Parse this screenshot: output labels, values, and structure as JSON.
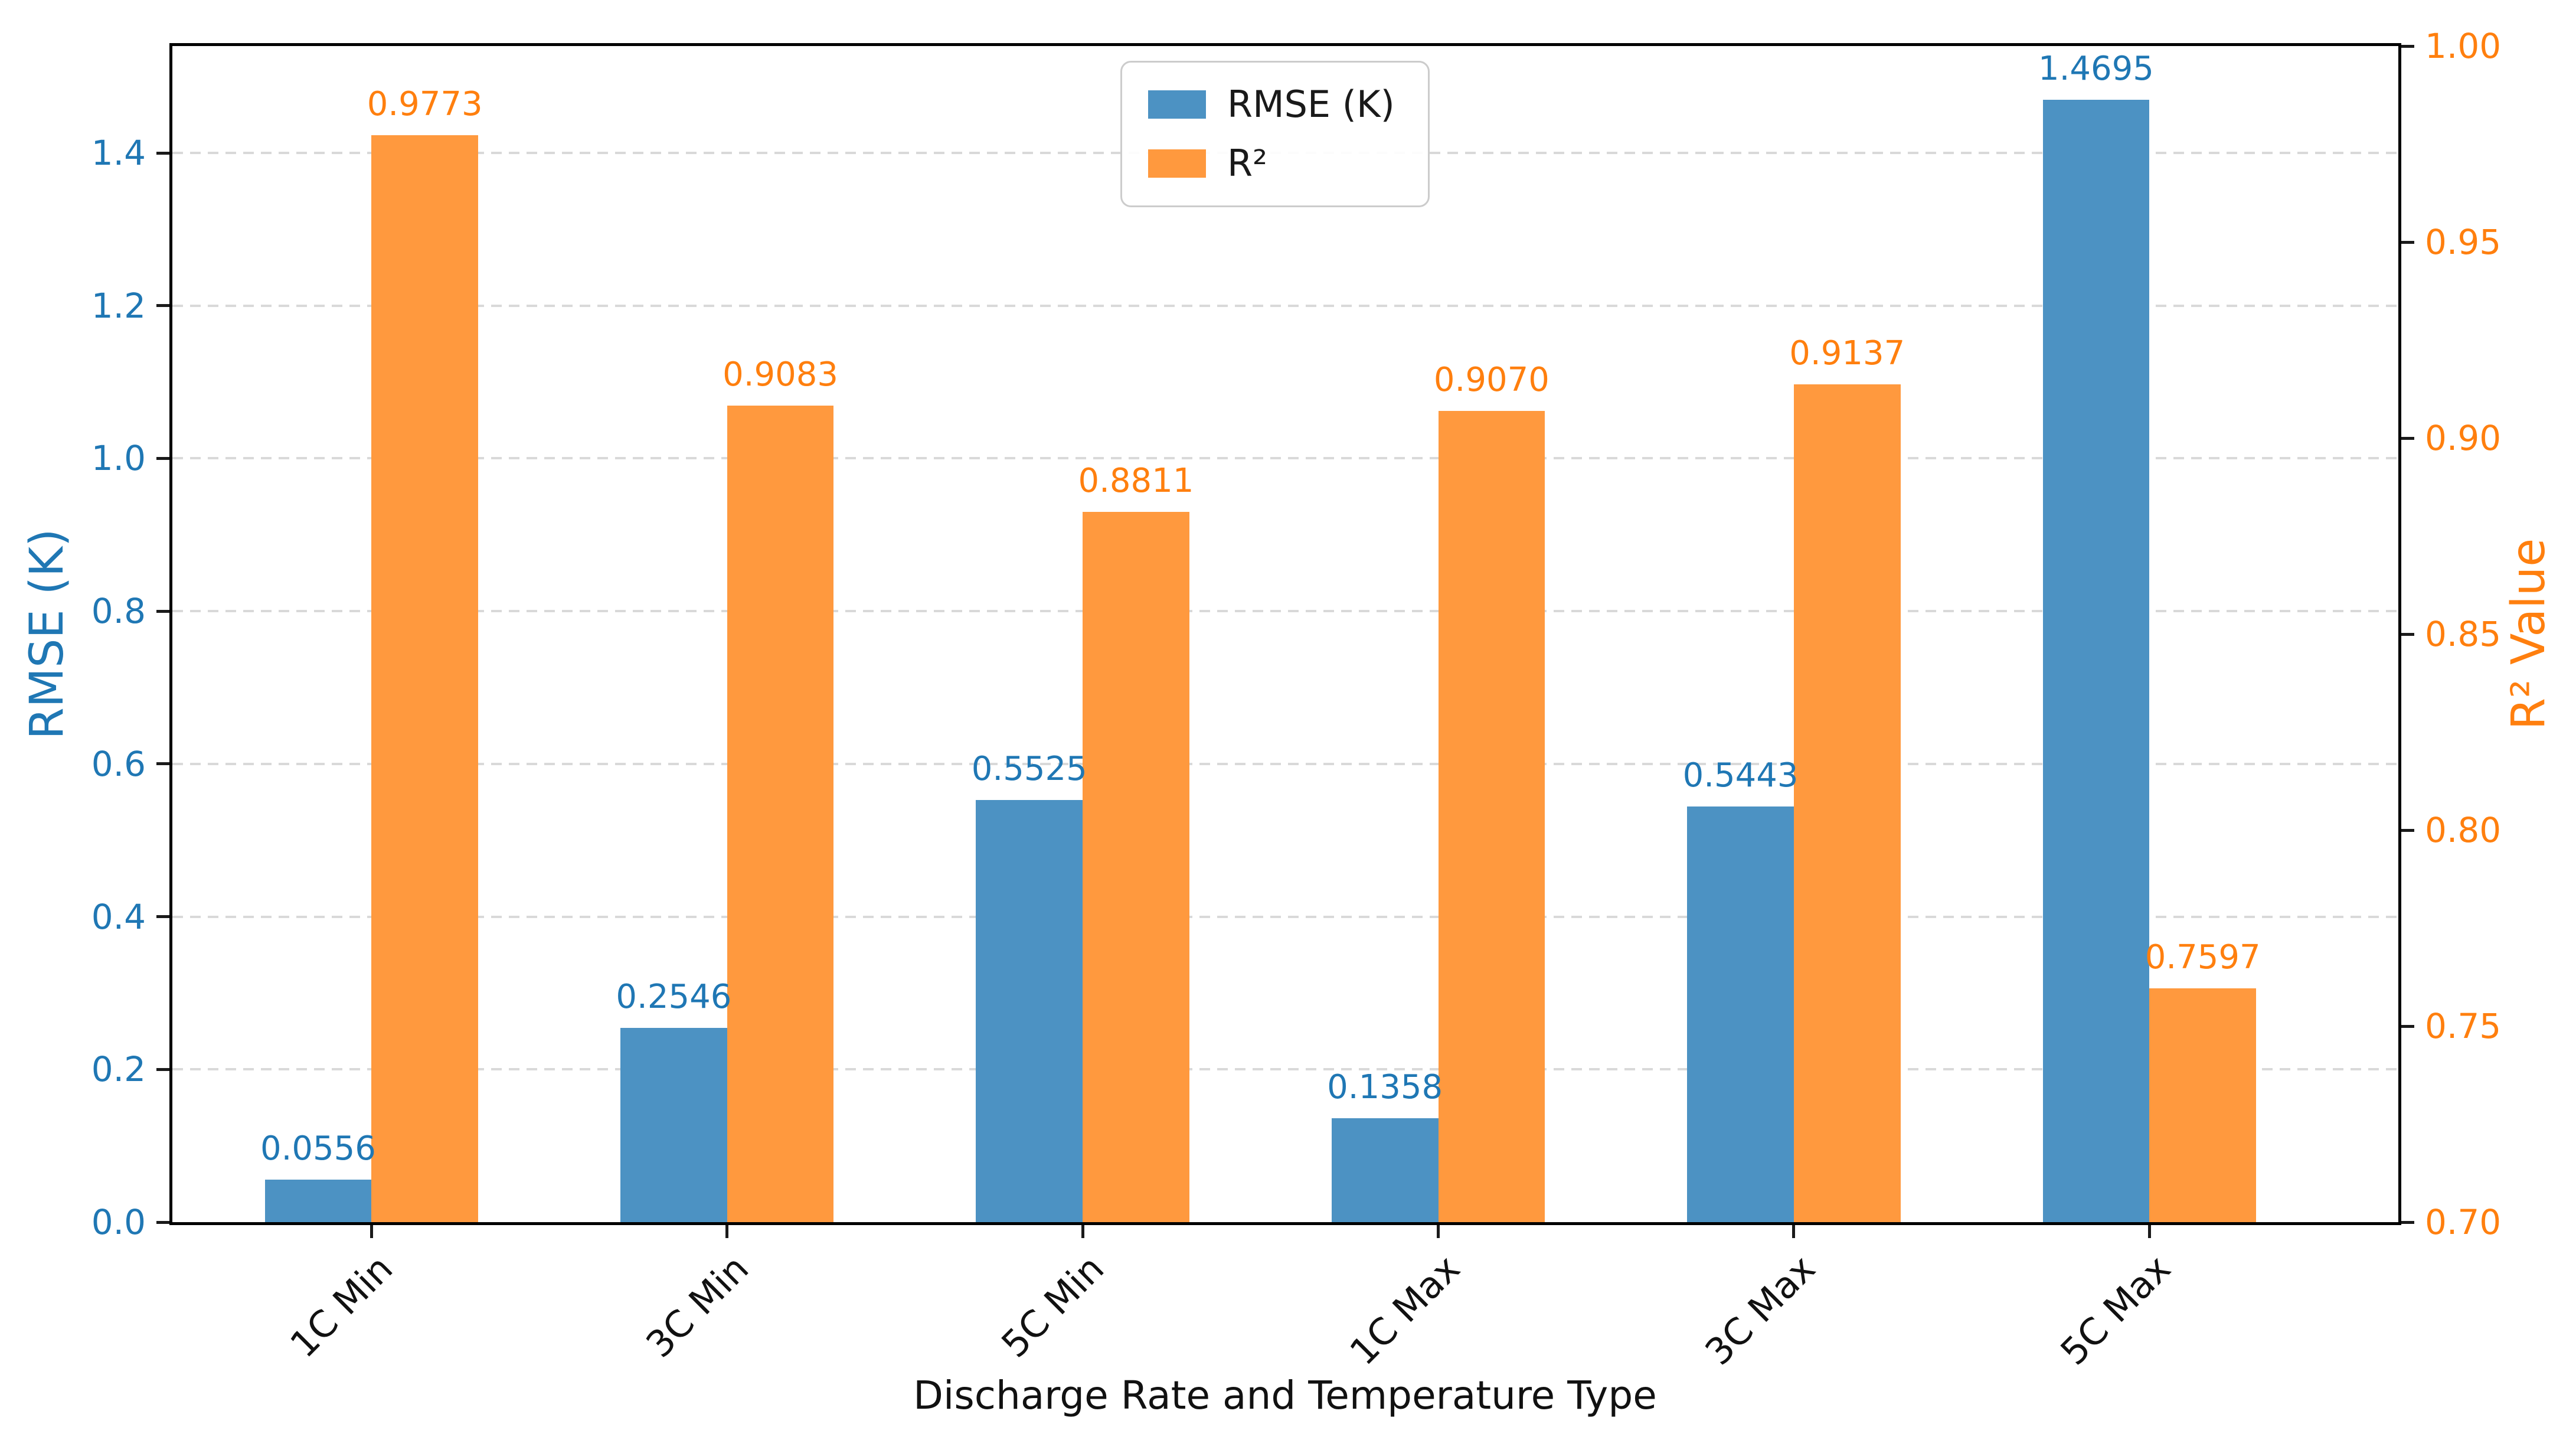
{
  "chart_data": {
    "type": "bar",
    "dual_axis": true,
    "xlabel": "Discharge Rate and Temperature Type",
    "categories": [
      "1C Min",
      "3C Min",
      "5C Min",
      "1C Max",
      "3C Max",
      "5C Max"
    ],
    "series": [
      {
        "name": "RMSE (K)",
        "axis": "left",
        "values": [
          0.0556,
          0.2546,
          0.5525,
          0.1358,
          0.5443,
          1.4695
        ],
        "value_labels": [
          "0.0556",
          "0.2546",
          "0.5525",
          "0.1358",
          "0.5443",
          "1.4695"
        ],
        "bar_color": "#4C92C3",
        "label_color": "#1F77B4"
      },
      {
        "name": "R²",
        "axis": "right",
        "values": [
          0.9773,
          0.9083,
          0.8811,
          0.907,
          0.9137,
          0.7597
        ],
        "value_labels": [
          "0.9773",
          "0.9083",
          "0.8811",
          "0.9070",
          "0.9137",
          "0.7597"
        ],
        "bar_color": "#FF993E",
        "label_color": "#FF7F0E"
      }
    ],
    "axis_left": {
      "label": "RMSE (K)",
      "min": 0,
      "max": 1.54,
      "tick_values": [
        0.0,
        0.2,
        0.4,
        0.6,
        0.8,
        1.0,
        1.2,
        1.4
      ],
      "tick_labels": [
        "0.0",
        "0.2",
        "0.4",
        "0.6",
        "0.8",
        "1.0",
        "1.2",
        "1.4"
      ],
      "color": "#1F77B4"
    },
    "axis_right": {
      "label": "R² Value",
      "min": 0.7,
      "max": 1.0,
      "tick_values": [
        0.7,
        0.75,
        0.8,
        0.85,
        0.9,
        0.95,
        1.0
      ],
      "tick_labels": [
        "0.70",
        "0.75",
        "0.80",
        "0.85",
        "0.90",
        "0.95",
        "1.00"
      ],
      "color": "#FF7F0E"
    },
    "x_axis": {
      "min": -0.56,
      "max": 5.7,
      "group_positions": [
        0,
        1,
        2,
        3,
        4,
        5
      ],
      "bar_width_units": 0.3
    },
    "grid": {
      "on": true,
      "orientation": "horizontal",
      "follows": "left-ticks",
      "color": "#D9D9D9",
      "style": "dashed"
    },
    "legend": {
      "position": "upper center",
      "entries": [
        {
          "label": "RMSE (K)",
          "color": "#4C92C3"
        },
        {
          "label": "R²",
          "color": "#FF993E"
        }
      ]
    }
  }
}
